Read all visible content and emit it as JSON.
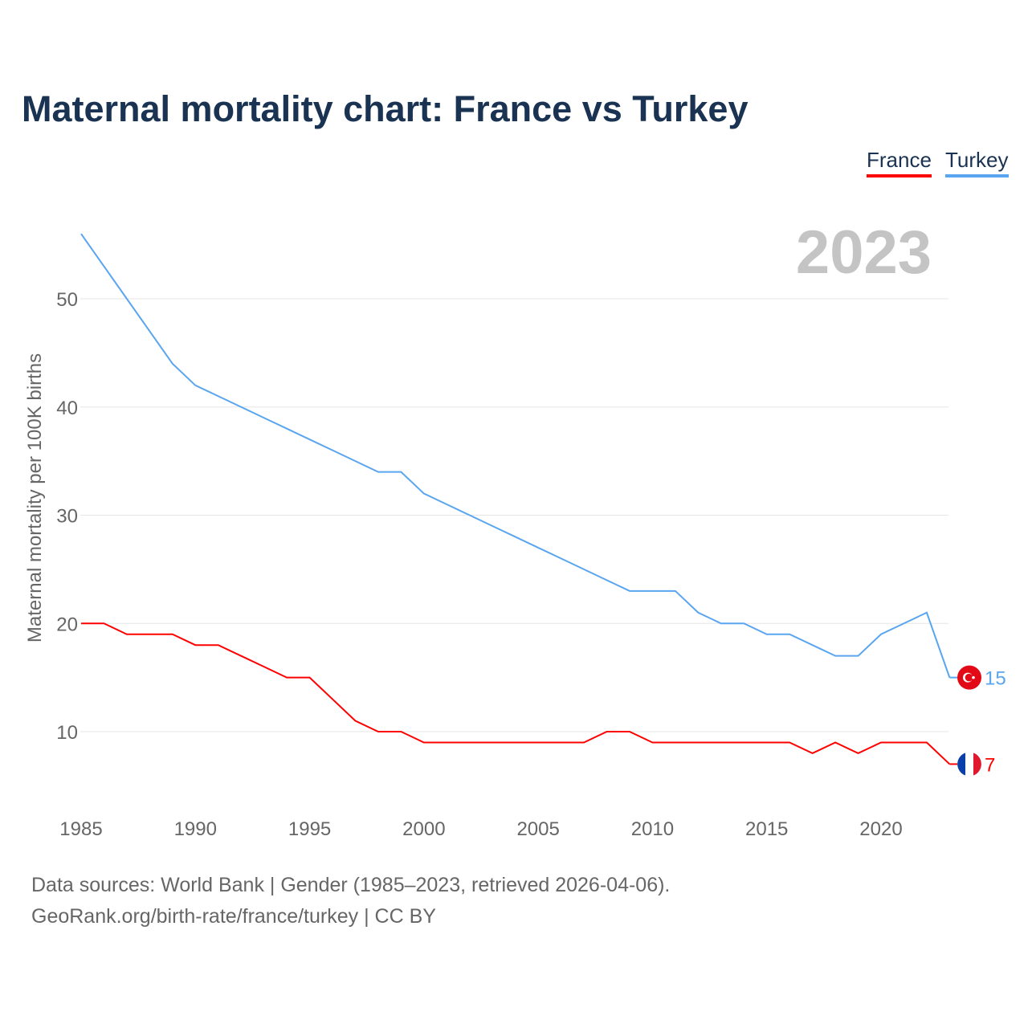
{
  "title": "Maternal mortality chart: France vs Turkey",
  "legend": [
    "France",
    "Turkey"
  ],
  "year_label": "2023",
  "sources": {
    "line1": "Data sources: World Bank | Gender (1985–2023, retrieved 2026-04-06).",
    "line2": "GeoRank.org/birth-rate/france/turkey | CC BY"
  },
  "colors": {
    "France": "#ff0000",
    "Turkey": "#5aa5ef"
  },
  "chart_data": {
    "type": "line",
    "title": "Maternal mortality chart: France vs Turkey",
    "xlabel": "",
    "ylabel": "Maternal mortality per 100K births",
    "xlim": [
      1985,
      2023
    ],
    "ylim": [
      0,
      56
    ],
    "xticks": [
      1985,
      1990,
      1995,
      2000,
      2005,
      2010,
      2015,
      2020
    ],
    "yticks": [
      10,
      20,
      30,
      40,
      50
    ],
    "grid": true,
    "legend_position": "top-right",
    "x": [
      1985,
      1986,
      1987,
      1988,
      1989,
      1990,
      1991,
      1992,
      1993,
      1994,
      1995,
      1996,
      1997,
      1998,
      1999,
      2000,
      2001,
      2002,
      2003,
      2004,
      2005,
      2006,
      2007,
      2008,
      2009,
      2010,
      2011,
      2012,
      2013,
      2014,
      2015,
      2016,
      2017,
      2018,
      2019,
      2020,
      2021,
      2022,
      2023
    ],
    "series": [
      {
        "name": "France",
        "end_label": "7",
        "values": [
          20,
          20,
          19,
          19,
          19,
          18,
          18,
          17,
          16,
          15,
          15,
          13,
          11,
          10,
          10,
          9,
          9,
          9,
          9,
          9,
          9,
          9,
          9,
          10,
          10,
          9,
          9,
          9,
          9,
          9,
          9,
          9,
          8,
          9,
          8,
          9,
          9,
          9,
          7
        ]
      },
      {
        "name": "Turkey",
        "end_label": "15",
        "values": [
          56,
          53,
          50,
          47,
          44,
          42,
          41,
          40,
          39,
          38,
          37,
          36,
          35,
          34,
          34,
          32,
          31,
          30,
          29,
          28,
          27,
          26,
          25,
          24,
          23,
          23,
          23,
          21,
          20,
          20,
          19,
          19,
          18,
          17,
          17,
          19,
          20,
          21,
          15
        ]
      }
    ]
  }
}
